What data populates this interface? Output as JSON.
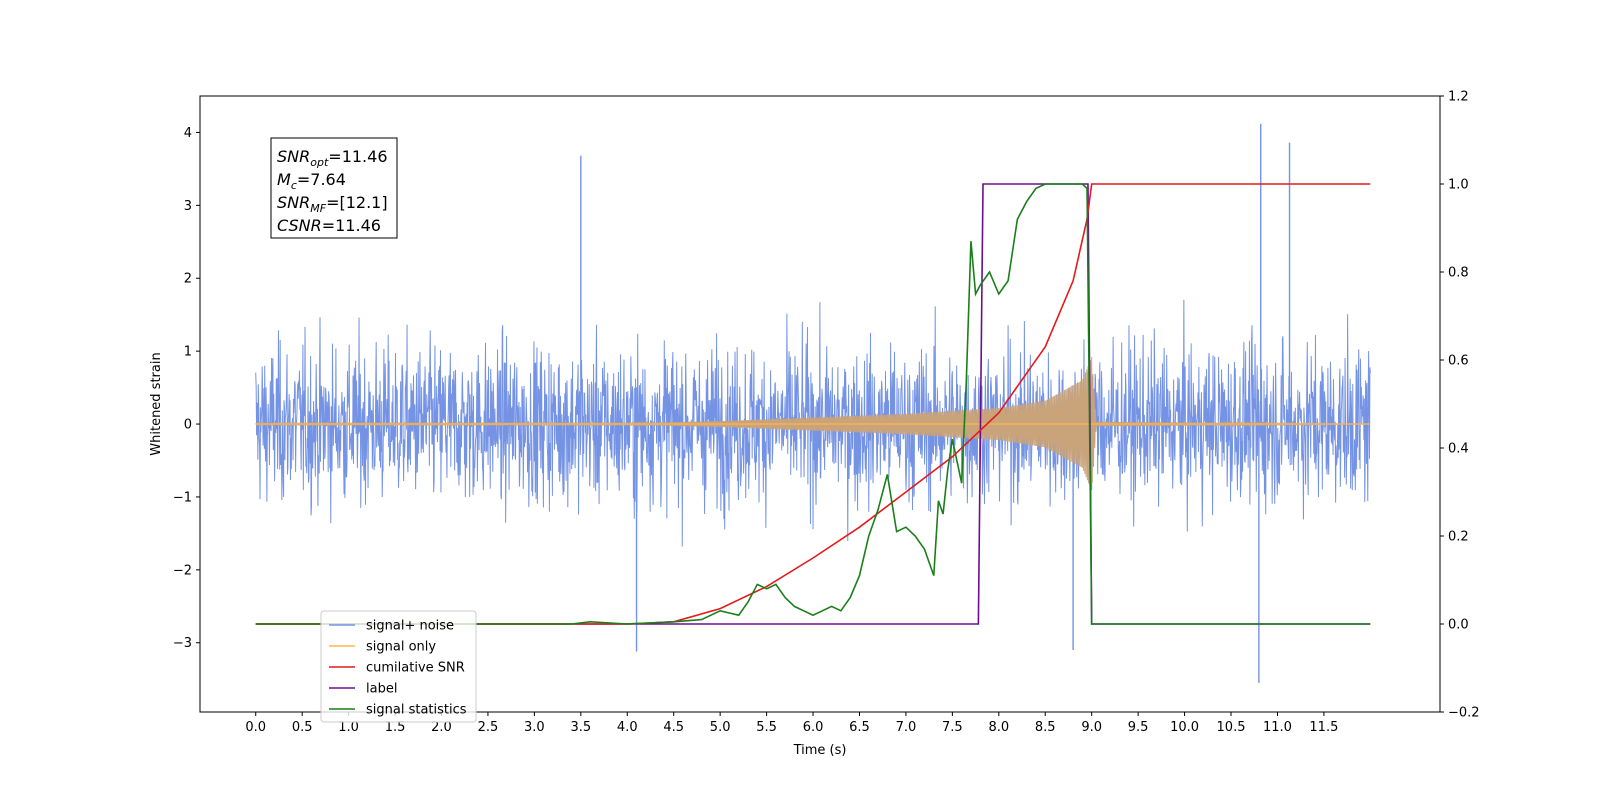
{
  "chart_data": {
    "type": "line",
    "xlabel": "Time (s)",
    "ylabel": "Whitened strain",
    "xlim": [
      -0.6,
      12.75
    ],
    "ylim": [
      -3.95,
      4.5
    ],
    "y2lim": [
      -0.2,
      1.2
    ],
    "x_ticks": [
      0.0,
      0.5,
      1.0,
      1.5,
      2.0,
      2.5,
      3.0,
      3.5,
      4.0,
      4.5,
      5.0,
      5.5,
      6.0,
      6.5,
      7.0,
      7.5,
      8.0,
      8.5,
      9.0,
      9.5,
      10.0,
      10.5,
      11.0,
      11.5
    ],
    "x_tick_labels": [
      "0.0",
      "0.5",
      "1.0",
      "1.5",
      "2.0",
      "2.5",
      "3.0",
      "3.5",
      "4.0",
      "4.5",
      "5.0",
      "5.5",
      "6.0",
      "6.5",
      "7.0",
      "7.5",
      "8.0",
      "8.5",
      "9.0",
      "9.5",
      "10.0",
      "10.5",
      "11.0",
      "11.5"
    ],
    "y_ticks": [
      -3,
      -2,
      -1,
      0,
      1,
      2,
      3,
      4
    ],
    "y_tick_labels": [
      "−3",
      "−2",
      "−1",
      "0",
      "1",
      "2",
      "3",
      "4"
    ],
    "y2_ticks": [
      -0.2,
      0.0,
      0.2,
      0.4,
      0.6,
      0.8,
      1.0,
      1.2
    ],
    "y2_tick_labels": [
      "−0.2",
      "0.0",
      "0.2",
      "0.4",
      "0.6",
      "0.8",
      "1.0",
      "1.2"
    ],
    "grid": false,
    "legend_placement": "lower-left",
    "annotation": {
      "lines": [
        {
          "sym": "SNR",
          "sub": "opt",
          "rest": "=11.46"
        },
        {
          "sym": "M",
          "sub": "c",
          "rest": "=7.64"
        },
        {
          "sym": "SNR",
          "sub": "MF",
          "rest": "=[12.1]"
        },
        {
          "sym": "CSNR",
          "sub": "",
          "rest": "=11.46"
        }
      ]
    },
    "series": [
      {
        "name": "signal+ noise",
        "color": "#7593e5",
        "axis": "left",
        "style": "noise",
        "x_range": [
          0.0,
          12.0
        ],
        "typical_envelope": [
          -2.0,
          2.0
        ],
        "extremes": [
          {
            "x": 10.82,
            "y": 4.12
          },
          {
            "x": 11.13,
            "y": 3.86
          },
          {
            "x": 3.5,
            "y": 3.68
          },
          {
            "x": 10.8,
            "y": -3.55
          },
          {
            "x": 4.1,
            "y": -3.12
          },
          {
            "x": 8.8,
            "y": -3.1
          }
        ]
      },
      {
        "name": "signal only",
        "color": "#ffb74d",
        "axis": "left",
        "style": "chirp",
        "x_range": [
          0.0,
          12.0
        ],
        "amplitude_points": [
          [
            0.0,
            0.01
          ],
          [
            4.0,
            0.01
          ],
          [
            5.0,
            0.04
          ],
          [
            6.0,
            0.09
          ],
          [
            7.0,
            0.14
          ],
          [
            8.0,
            0.22
          ],
          [
            8.5,
            0.32
          ],
          [
            8.9,
            0.6
          ],
          [
            9.0,
            0.92
          ],
          [
            9.05,
            0.03
          ],
          [
            12.0,
            0.0
          ]
        ]
      },
      {
        "name": "cumilative SNR",
        "color": "#e41a1c",
        "axis": "right",
        "style": "line",
        "x": [
          0.0,
          4.0,
          4.5,
          5.0,
          5.5,
          6.0,
          6.5,
          7.0,
          7.5,
          8.0,
          8.5,
          8.8,
          8.95,
          9.0,
          12.0
        ],
        "y": [
          0.0,
          0.0,
          0.005,
          0.035,
          0.085,
          0.15,
          0.22,
          0.3,
          0.38,
          0.48,
          0.63,
          0.78,
          0.92,
          1.0,
          1.0
        ]
      },
      {
        "name": "label",
        "color": "#6a0f8e",
        "axis": "right",
        "style": "line",
        "x": [
          0.0,
          7.78,
          7.83,
          8.9,
          8.96,
          9.0,
          12.0
        ],
        "y": [
          0.0,
          0.0,
          1.0,
          1.0,
          1.0,
          0.0,
          0.0
        ]
      },
      {
        "name": "signal statistics",
        "color": "#1a7f1a",
        "axis": "right",
        "style": "line",
        "x": [
          0.0,
          3.4,
          3.6,
          4.0,
          4.5,
          4.8,
          5.0,
          5.1,
          5.2,
          5.3,
          5.4,
          5.5,
          5.6,
          5.7,
          5.8,
          5.9,
          6.0,
          6.1,
          6.2,
          6.3,
          6.4,
          6.5,
          6.6,
          6.7,
          6.8,
          6.9,
          7.0,
          7.1,
          7.2,
          7.3,
          7.35,
          7.4,
          7.45,
          7.5,
          7.55,
          7.6,
          7.65,
          7.7,
          7.75,
          7.8,
          7.9,
          8.0,
          8.1,
          8.2,
          8.3,
          8.4,
          8.5,
          8.6,
          8.7,
          8.8,
          8.9,
          8.95,
          9.0,
          9.1,
          12.0
        ],
        "y": [
          0.0,
          0.0,
          0.005,
          0.0,
          0.005,
          0.01,
          0.03,
          0.025,
          0.02,
          0.05,
          0.09,
          0.08,
          0.09,
          0.06,
          0.04,
          0.03,
          0.02,
          0.03,
          0.04,
          0.03,
          0.06,
          0.11,
          0.2,
          0.26,
          0.34,
          0.21,
          0.22,
          0.2,
          0.17,
          0.11,
          0.28,
          0.25,
          0.35,
          0.42,
          0.37,
          0.32,
          0.55,
          0.87,
          0.75,
          0.77,
          0.8,
          0.75,
          0.78,
          0.92,
          0.96,
          0.99,
          1.0,
          1.0,
          1.0,
          1.0,
          1.0,
          0.99,
          0.0,
          0.0,
          0.0
        ]
      }
    ]
  }
}
